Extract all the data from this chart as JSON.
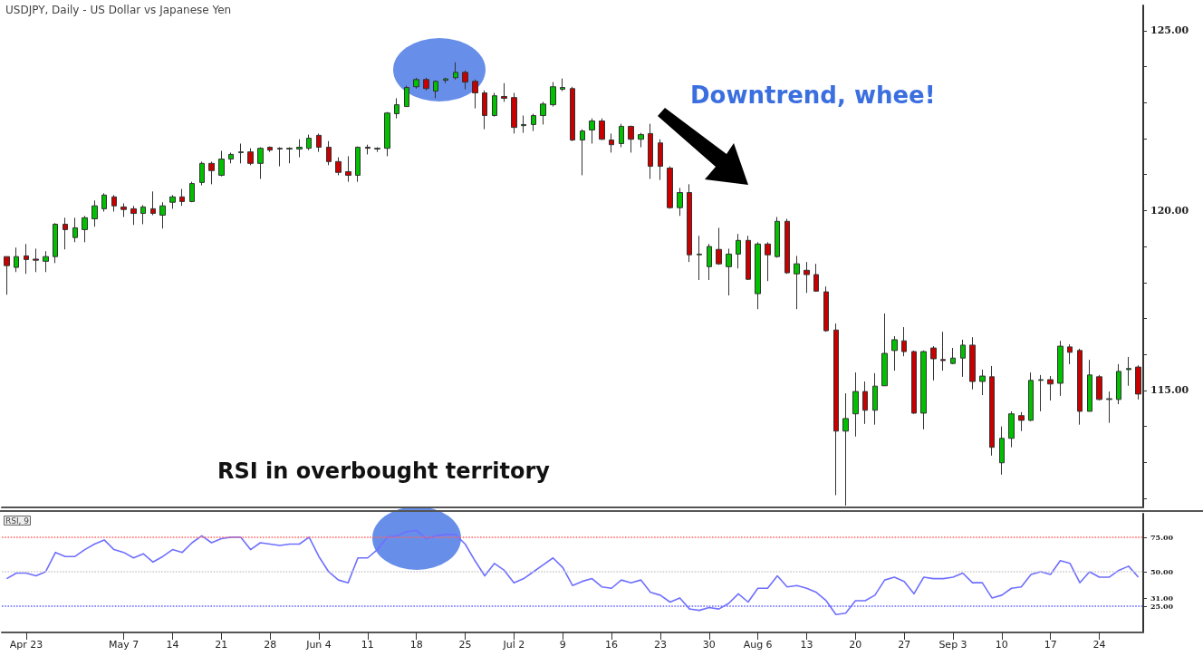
{
  "chart_data": [
    {
      "type": "candlestick",
      "title": "USDJPY, Daily - US Dollar vs Japanese Yen",
      "annotations": [
        "Downtrend, whee!",
        "RSI in overbought territory"
      ],
      "categories": [
        null,
        null,
        null,
        null,
        null,
        null,
        null,
        null,
        null,
        null,
        null,
        null,
        null,
        null,
        null,
        null,
        null,
        null,
        null,
        null,
        null,
        null,
        null,
        null,
        null,
        null,
        null,
        null,
        null,
        null,
        null,
        null,
        null,
        null,
        null,
        null,
        null,
        null,
        null,
        null,
        null,
        null,
        null,
        null,
        null,
        null,
        null,
        null,
        null,
        null,
        null,
        null,
        null,
        null,
        null,
        null,
        null,
        null,
        null,
        null,
        null,
        null,
        null,
        null,
        null,
        null,
        null,
        null,
        null,
        null,
        null,
        null,
        null,
        null,
        null,
        null,
        null,
        null,
        null,
        null,
        null,
        null,
        null,
        null,
        null,
        null,
        null,
        null,
        null,
        null,
        null,
        null,
        null,
        null,
        null,
        null,
        null,
        null,
        null,
        null,
        null,
        null,
        null,
        null,
        null,
        null,
        null,
        null,
        null,
        null,
        null,
        null,
        null,
        null,
        null,
        null,
        null
      ],
      "ohlc": [
        [
          118.72,
          118.72,
          117.66,
          118.47
        ],
        [
          118.42,
          118.97,
          118.29,
          118.72
        ],
        [
          118.74,
          119.07,
          118.24,
          118.64
        ],
        [
          118.65,
          118.94,
          118.29,
          118.62
        ],
        [
          118.59,
          118.87,
          118.29,
          118.72
        ],
        [
          118.72,
          119.65,
          118.54,
          119.62
        ],
        [
          119.62,
          119.8,
          118.92,
          119.47
        ],
        [
          119.25,
          119.8,
          119.12,
          119.52
        ],
        [
          119.47,
          119.85,
          119.12,
          119.8
        ],
        [
          119.77,
          120.28,
          119.55,
          120.13
        ],
        [
          120.05,
          120.48,
          119.97,
          120.43
        ],
        [
          120.38,
          120.43,
          119.97,
          120.13
        ],
        [
          120.1,
          120.2,
          119.82,
          120.03
        ],
        [
          120.05,
          120.13,
          119.6,
          119.92
        ],
        [
          119.92,
          120.15,
          119.62,
          120.1
        ],
        [
          120.05,
          120.53,
          119.87,
          119.92
        ],
        [
          119.87,
          120.23,
          119.5,
          120.13
        ],
        [
          120.23,
          120.43,
          120.05,
          120.38
        ],
        [
          120.38,
          120.6,
          120.13,
          120.25
        ],
        [
          120.25,
          120.8,
          120.23,
          120.75
        ],
        [
          120.78,
          121.36,
          120.7,
          121.31
        ],
        [
          121.31,
          121.36,
          120.73,
          121.11
        ],
        [
          120.98,
          121.66,
          120.95,
          121.43
        ],
        [
          121.43,
          121.61,
          121.31,
          121.56
        ],
        [
          121.61,
          121.86,
          121.31,
          121.63
        ],
        [
          121.63,
          121.73,
          121.26,
          121.31
        ],
        [
          121.31,
          121.76,
          120.88,
          121.73
        ],
        [
          121.76,
          121.78,
          121.63,
          121.68
        ],
        [
          121.73,
          121.76,
          121.23,
          121.71
        ],
        [
          121.71,
          121.76,
          121.31,
          121.73
        ],
        [
          121.71,
          121.98,
          121.48,
          121.76
        ],
        [
          121.73,
          122.11,
          121.68,
          122.01
        ],
        [
          122.09,
          122.14,
          121.63,
          121.76
        ],
        [
          121.76,
          121.93,
          121.26,
          121.36
        ],
        [
          121.36,
          121.48,
          120.98,
          121.06
        ],
        [
          121.08,
          121.51,
          120.8,
          120.98
        ],
        [
          120.98,
          121.78,
          120.8,
          121.76
        ],
        [
          121.76,
          121.83,
          121.56,
          121.73
        ],
        [
          121.71,
          121.76,
          121.63,
          121.73
        ],
        [
          121.73,
          122.74,
          121.51,
          122.71
        ],
        [
          122.69,
          123.12,
          122.56,
          122.94
        ],
        [
          122.89,
          123.47,
          122.89,
          123.42
        ],
        [
          123.44,
          123.69,
          123.39,
          123.64
        ],
        [
          123.64,
          123.69,
          123.34,
          123.39
        ],
        [
          123.32,
          123.62,
          123.12,
          123.59
        ],
        [
          123.62,
          123.69,
          123.54,
          123.66
        ],
        [
          123.69,
          124.12,
          123.64,
          123.84
        ],
        [
          123.84,
          123.89,
          123.37,
          123.57
        ],
        [
          123.59,
          123.64,
          122.84,
          123.27
        ],
        [
          123.27,
          123.34,
          122.26,
          122.64
        ],
        [
          122.64,
          123.27,
          122.61,
          123.19
        ],
        [
          123.17,
          123.54,
          123.02,
          123.12
        ],
        [
          123.14,
          123.27,
          122.14,
          122.31
        ],
        [
          122.36,
          122.64,
          122.16,
          122.39
        ],
        [
          122.39,
          122.69,
          122.21,
          122.64
        ],
        [
          122.64,
          123.02,
          122.39,
          122.96
        ],
        [
          122.94,
          123.57,
          122.89,
          123.44
        ],
        [
          123.37,
          123.67,
          123.32,
          123.42
        ],
        [
          123.39,
          123.44,
          121.93,
          121.96
        ],
        [
          121.96,
          122.26,
          120.98,
          122.21
        ],
        [
          122.24,
          122.56,
          121.86,
          122.49
        ],
        [
          122.49,
          122.56,
          121.96,
          121.98
        ],
        [
          121.96,
          122.14,
          121.61,
          121.83
        ],
        [
          121.86,
          122.41,
          121.76,
          122.34
        ],
        [
          122.34,
          122.36,
          121.61,
          121.98
        ],
        [
          121.98,
          122.16,
          121.76,
          122.11
        ],
        [
          122.14,
          122.41,
          120.88,
          121.23
        ],
        [
          121.88,
          121.98,
          120.85,
          121.23
        ],
        [
          121.18,
          121.23,
          120.05,
          120.08
        ],
        [
          120.08,
          120.63,
          119.85,
          120.5
        ],
        [
          120.5,
          120.73,
          118.57,
          118.77
        ],
        [
          118.77,
          119.3,
          118.07,
          118.79
        ],
        [
          118.44,
          119.07,
          118.07,
          119.0
        ],
        [
          118.92,
          119.52,
          118.49,
          118.52
        ],
        [
          118.44,
          118.94,
          117.64,
          118.79
        ],
        [
          118.79,
          119.35,
          118.39,
          119.17
        ],
        [
          119.17,
          119.3,
          118.07,
          118.09
        ],
        [
          117.69,
          119.12,
          117.26,
          119.07
        ],
        [
          119.07,
          119.12,
          118.04,
          118.77
        ],
        [
          118.72,
          119.82,
          118.69,
          119.7
        ],
        [
          119.7,
          119.77,
          118.24,
          118.27
        ],
        [
          118.24,
          118.74,
          117.26,
          118.52
        ],
        [
          118.34,
          118.57,
          117.71,
          118.22
        ],
        [
          118.22,
          118.52,
          117.74,
          117.76
        ],
        [
          117.74,
          117.89,
          116.63,
          116.66
        ],
        [
          116.68,
          116.86,
          112.09,
          113.87
        ],
        [
          113.87,
          114.92,
          111.8,
          114.22
        ],
        [
          114.35,
          115.5,
          113.72,
          114.97
        ],
        [
          114.97,
          115.25,
          114.07,
          114.45
        ],
        [
          114.45,
          115.48,
          114.05,
          115.12
        ],
        [
          115.13,
          117.14,
          115.13,
          116.03
        ],
        [
          116.11,
          116.51,
          115.55,
          116.41
        ],
        [
          116.38,
          116.76,
          115.95,
          116.08
        ],
        [
          116.08,
          116.11,
          114.35,
          114.37
        ],
        [
          114.37,
          116.11,
          113.92,
          116.08
        ],
        [
          116.18,
          116.23,
          115.28,
          115.88
        ],
        [
          115.86,
          116.63,
          115.55,
          115.83
        ],
        [
          115.75,
          116.18,
          115.73,
          115.9
        ],
        [
          115.9,
          116.41,
          115.38,
          116.26
        ],
        [
          116.26,
          116.48,
          115.03,
          115.25
        ],
        [
          115.25,
          115.58,
          114.87,
          115.4
        ],
        [
          115.38,
          115.68,
          113.19,
          113.42
        ],
        [
          112.99,
          114.0,
          112.66,
          113.67
        ],
        [
          113.67,
          114.42,
          113.42,
          114.35
        ],
        [
          114.3,
          114.4,
          113.87,
          114.17
        ],
        [
          114.17,
          115.5,
          114.15,
          115.28
        ],
        [
          115.28,
          115.43,
          114.42,
          115.3
        ],
        [
          115.3,
          115.4,
          114.72,
          115.18
        ],
        [
          115.2,
          116.38,
          114.85,
          116.23
        ],
        [
          116.21,
          116.28,
          115.73,
          116.06
        ],
        [
          116.11,
          116.16,
          114.05,
          114.42
        ],
        [
          114.42,
          115.85,
          114.42,
          115.43
        ],
        [
          115.38,
          115.43,
          114.72,
          114.75
        ],
        [
          114.75,
          114.97,
          114.1,
          114.77
        ],
        [
          114.75,
          115.73,
          114.62,
          115.53
        ],
        [
          115.58,
          115.93,
          115.13,
          115.61
        ],
        [
          115.65,
          115.7,
          114.75,
          114.9
        ]
      ],
      "colors": [
        "#c80000",
        "#00c000",
        "#c80000",
        "#c80000",
        "#00c000",
        "#00c000",
        "#c80000",
        "#00c000",
        "#00c000",
        "#00c000",
        "#00c000",
        "#c80000",
        "#c80000",
        "#c80000",
        "#00c000",
        "#c80000",
        "#00c000",
        "#00c000",
        "#c80000",
        "#00c000",
        "#00c000",
        "#c80000",
        "#00c000",
        "#00c000",
        "#00c000",
        "#c80000",
        "#00c000",
        "#c80000",
        "#c80000",
        "#00c000",
        "#00c000",
        "#00c000",
        "#c80000",
        "#c80000",
        "#c80000",
        "#c80000",
        "#00c000",
        "#c80000",
        "#00c000",
        "#00c000",
        "#00c000",
        "#00c000",
        "#00c000",
        "#c80000",
        "#00c000",
        "#00c000",
        "#00c000",
        "#c80000",
        "#c80000",
        "#c80000",
        "#00c000",
        "#c80000",
        "#c80000",
        "#00c000",
        "#00c000",
        "#00c000",
        "#00c000",
        "#00c000",
        "#c80000",
        "#00c000",
        "#00c000",
        "#c80000",
        "#c80000",
        "#00c000",
        "#c80000",
        "#00c000",
        "#c80000",
        "#c80000",
        "#c80000",
        "#00c000",
        "#c80000",
        "#00c000",
        "#00c000",
        "#c80000",
        "#00c000",
        "#00c000",
        "#c80000",
        "#00c000",
        "#c80000",
        "#00c000",
        "#c80000",
        "#00c000",
        "#c80000",
        "#c80000",
        "#c80000",
        "#c80000",
        "#00c000",
        "#00c000",
        "#c80000",
        "#00c000",
        "#00c000",
        "#00c000",
        "#c80000",
        "#c80000",
        "#00c000",
        "#c80000",
        "#c80000",
        "#00c000",
        "#00c000",
        "#c80000",
        "#00c000",
        "#c80000",
        "#00c000",
        "#00c000",
        "#c80000",
        "#00c000",
        "#00c000",
        "#c80000",
        "#00c000",
        "#c80000",
        "#c80000",
        "#00c000",
        "#c80000",
        "#00c000",
        "#00c000",
        "#00c000",
        "#c80000"
      ],
      "ylim": [
        111.75,
        125.7
      ],
      "yticks": [
        {
          "value": 112,
          "label": null
        },
        {
          "value": 113,
          "label": null
        },
        {
          "value": 114,
          "label": null
        },
        {
          "value": 115,
          "label": "115.00"
        },
        {
          "value": 116,
          "label": null
        },
        {
          "value": 117,
          "label": null
        },
        {
          "value": 118,
          "label": null
        },
        {
          "value": 119,
          "label": null
        },
        {
          "value": 120,
          "label": "120.00"
        },
        {
          "value": 121,
          "label": null
        },
        {
          "value": 122,
          "label": null
        },
        {
          "value": 123,
          "label": null
        },
        {
          "value": 124,
          "label": null
        },
        {
          "value": 125,
          "label": "125.00"
        }
      ]
    },
    {
      "type": "line",
      "title": "RSI, 9",
      "line_style": "solid",
      "categories": [
        null,
        null,
        "Apr 23",
        null,
        null,
        null,
        null,
        null,
        null,
        null,
        null,
        null,
        "May 7",
        null,
        null,
        null,
        null,
        "14",
        null,
        null,
        null,
        null,
        "21",
        null,
        null,
        null,
        null,
        "28",
        null,
        null,
        null,
        null,
        "Jun 4",
        null,
        null,
        null,
        null,
        "11",
        null,
        null,
        null,
        null,
        "18",
        null,
        null,
        null,
        null,
        "25",
        null,
        null,
        null,
        null,
        "Jul 2",
        null,
        null,
        null,
        null,
        "9",
        null,
        null,
        null,
        null,
        "16",
        null,
        null,
        null,
        null,
        "23",
        null,
        null,
        null,
        null,
        "30",
        null,
        null,
        null,
        null,
        "Aug 6",
        null,
        null,
        null,
        null,
        "13",
        null,
        null,
        null,
        null,
        "20",
        null,
        null,
        null,
        null,
        "27",
        null,
        null,
        null,
        null,
        "Sep 3",
        null,
        null,
        null,
        null,
        "10",
        null,
        null,
        null,
        null,
        "17",
        null,
        null,
        null,
        null,
        "24",
        null,
        null,
        null,
        null
      ],
      "series": [
        {
          "color": "#6f6fff",
          "values": [
            45,
            49,
            49,
            47,
            50,
            64,
            61,
            61,
            66,
            70,
            73,
            66,
            64,
            60,
            63,
            57,
            61,
            66,
            64,
            71,
            76,
            71,
            74,
            75,
            75,
            66,
            71,
            70,
            69,
            70,
            70,
            75,
            61,
            50,
            44,
            42,
            60,
            60,
            66,
            75,
            76,
            79,
            80,
            74,
            76,
            77,
            77,
            70,
            58,
            47,
            56,
            51,
            42,
            45,
            50,
            55,
            60,
            53,
            40,
            43,
            45,
            39,
            38,
            44,
            42,
            44,
            35,
            33,
            28,
            31,
            23,
            22,
            24,
            23,
            27,
            34,
            28,
            38,
            38,
            47,
            39,
            40,
            38,
            35,
            29,
            19,
            20,
            29,
            29,
            33,
            44,
            46,
            43,
            34,
            46,
            45,
            45,
            46,
            49,
            42,
            42,
            31,
            33,
            38,
            39,
            48,
            50,
            48,
            58,
            56,
            42,
            50,
            46,
            46,
            51,
            54,
            46
          ]
        }
      ],
      "ylim": [
        6,
        92
      ],
      "yticks": [
        {
          "value": 25,
          "label": "25.00"
        },
        {
          "value": 31,
          "label": "31.00"
        },
        {
          "value": 50,
          "label": "50.00"
        },
        {
          "value": 75,
          "label": "75.00"
        }
      ],
      "ref_lines": [
        {
          "axis": "y",
          "value": 75,
          "color": "#ff6666",
          "line_style": "dotted"
        },
        {
          "axis": "y",
          "value": 50,
          "color": "#cccccc",
          "line_style": "dotted"
        },
        {
          "axis": "y",
          "value": 25,
          "color": "#6666ff",
          "line_style": "dotted"
        }
      ]
    }
  ]
}
